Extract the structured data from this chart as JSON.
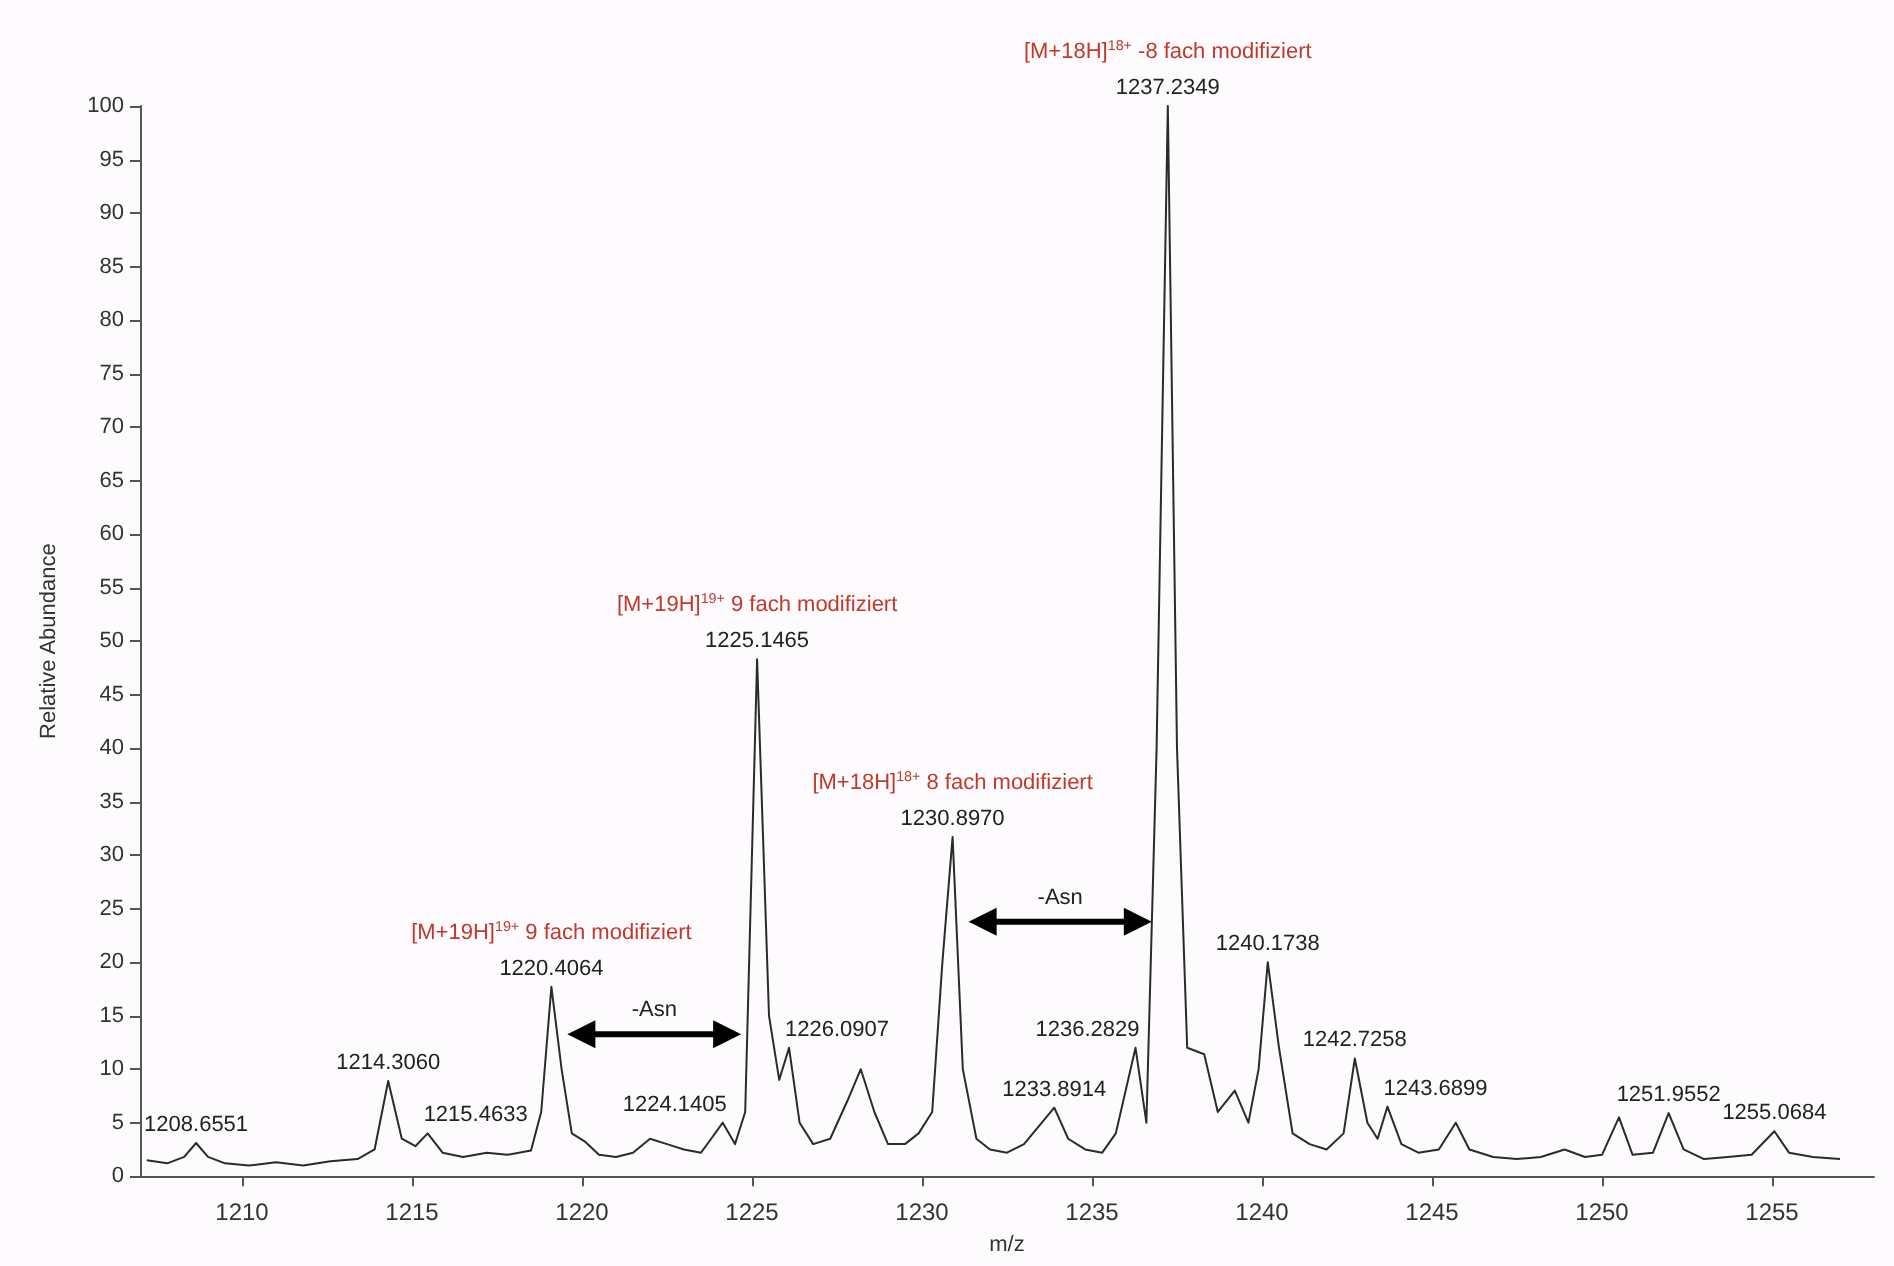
{
  "chart_data": {
    "type": "line",
    "xlabel": "m/z",
    "ylabel": "Relative Abundance",
    "color": "#2b2b2b",
    "xlim": [
      1207,
      1258
    ],
    "ylim": [
      0,
      100
    ],
    "xticks": [
      1210,
      1215,
      1220,
      1225,
      1230,
      1235,
      1240,
      1245,
      1250,
      1255
    ],
    "yticks": [
      0,
      5,
      10,
      15,
      20,
      25,
      30,
      35,
      40,
      45,
      50,
      55,
      60,
      65,
      70,
      75,
      80,
      85,
      90,
      95,
      100
    ],
    "x": [
      1207.2,
      1207.8,
      1208.3,
      1208.65,
      1209.0,
      1209.5,
      1210.2,
      1211.0,
      1211.8,
      1212.6,
      1213.4,
      1213.9,
      1214.3,
      1214.7,
      1215.1,
      1215.46,
      1215.9,
      1216.5,
      1217.2,
      1217.8,
      1218.5,
      1218.8,
      1219.1,
      1219.4,
      1219.7,
      1220.1,
      1220.5,
      1221.0,
      1221.5,
      1222.0,
      1222.5,
      1223.0,
      1223.5,
      1223.8,
      1224.14,
      1224.5,
      1224.8,
      1225.15,
      1225.5,
      1225.8,
      1226.09,
      1226.4,
      1226.8,
      1227.3,
      1227.8,
      1228.2,
      1228.6,
      1229.0,
      1229.5,
      1229.9,
      1230.3,
      1230.6,
      1230.9,
      1231.2,
      1231.6,
      1232.0,
      1232.5,
      1233.0,
      1233.89,
      1234.3,
      1234.8,
      1235.3,
      1235.7,
      1236.28,
      1236.6,
      1236.9,
      1237.23,
      1237.5,
      1237.8,
      1238.3,
      1238.7,
      1239.2,
      1239.6,
      1239.9,
      1240.17,
      1240.5,
      1240.9,
      1241.4,
      1241.9,
      1242.4,
      1242.73,
      1243.1,
      1243.4,
      1243.69,
      1244.1,
      1244.6,
      1245.2,
      1245.7,
      1246.1,
      1246.8,
      1247.5,
      1248.2,
      1248.9,
      1249.5,
      1250.0,
      1250.5,
      1250.9,
      1251.5,
      1251.96,
      1252.4,
      1253.0,
      1253.7,
      1254.4,
      1255.07,
      1255.5,
      1256.2,
      1257.0
    ],
    "values": [
      1.5,
      1.2,
      1.8,
      3.1,
      1.8,
      1.2,
      1.0,
      1.3,
      1.0,
      1.4,
      1.6,
      2.5,
      8.9,
      3.5,
      2.8,
      4.0,
      2.2,
      1.8,
      2.2,
      2.0,
      2.4,
      6,
      17.7,
      10,
      4,
      3.2,
      2,
      1.8,
      2.2,
      3.5,
      3,
      2.5,
      2.2,
      3.5,
      5.0,
      3,
      6,
      48.3,
      15,
      9,
      12,
      5,
      3,
      3.5,
      7,
      10,
      6,
      3,
      3,
      4,
      6,
      20,
      31.7,
      10,
      3.5,
      2.5,
      2.2,
      3,
      6.4,
      3.5,
      2.5,
      2.2,
      4,
      12,
      5,
      40,
      100,
      40,
      12,
      11.4,
      6,
      8,
      5,
      10,
      20,
      12,
      4,
      3,
      2.5,
      4,
      11,
      5,
      3.5,
      6.5,
      3,
      2.2,
      2.5,
      5,
      2.5,
      1.8,
      1.6,
      1.8,
      2.5,
      1.8,
      2,
      5.5,
      2,
      2.2,
      5.9,
      2.5,
      1.6,
      1.8,
      2,
      4.2,
      2.2,
      1.8,
      1.6
    ],
    "annotations": [
      {
        "text": "1208.6551",
        "x": 1208.65,
        "y": 3.1
      },
      {
        "text": "1214.3060",
        "x": 1214.3,
        "y": 8.9
      },
      {
        "text": "1215.4633",
        "x": 1215.46,
        "y": 4.0
      },
      {
        "text": "1220.4064",
        "x": 1219.1,
        "y": 17.7
      },
      {
        "text": "[M+19H]$^{19+}$  9 fach modifiziert",
        "x": 1219.1,
        "y": 17.7
      },
      {
        "text": "1224.1405",
        "x": 1224.14,
        "y": 5.0
      },
      {
        "text": "1225.1465",
        "x": 1225.15,
        "y": 48.3
      },
      {
        "text": "[M+19H]$^{19+}$  9 fach modifiziert",
        "x": 1225.15,
        "y": 48.3
      },
      {
        "text": "1226.0907",
        "x": 1226.09,
        "y": 12
      },
      {
        "text": "1230.8970",
        "x": 1230.9,
        "y": 31.7
      },
      {
        "text": "[M+18H]$^{18+}$  8 fach modifiziert",
        "x": 1230.9,
        "y": 31.7
      },
      {
        "text": "1233.8914",
        "x": 1233.89,
        "y": 6.4
      },
      {
        "text": "1236.2829",
        "x": 1236.28,
        "y": 12
      },
      {
        "text": "1237.2349",
        "x": 1237.23,
        "y": 100
      },
      {
        "text": "[M+18H]$^{18+}$  -8 fach modifiziert",
        "x": 1237.23,
        "y": 100
      },
      {
        "text": "1240.1738",
        "x": 1240.17,
        "y": 20
      },
      {
        "text": "1242.7258",
        "x": 1242.73,
        "y": 11
      },
      {
        "text": "1243.6899",
        "x": 1243.69,
        "y": 6.5
      },
      {
        "text": "1251.9552",
        "x": 1251.96,
        "y": 5.9
      },
      {
        "text": "1255.0684",
        "x": 1255.07,
        "y": 4.2
      },
      "-Asn",
      "-Asn"
    ]
  }
}
